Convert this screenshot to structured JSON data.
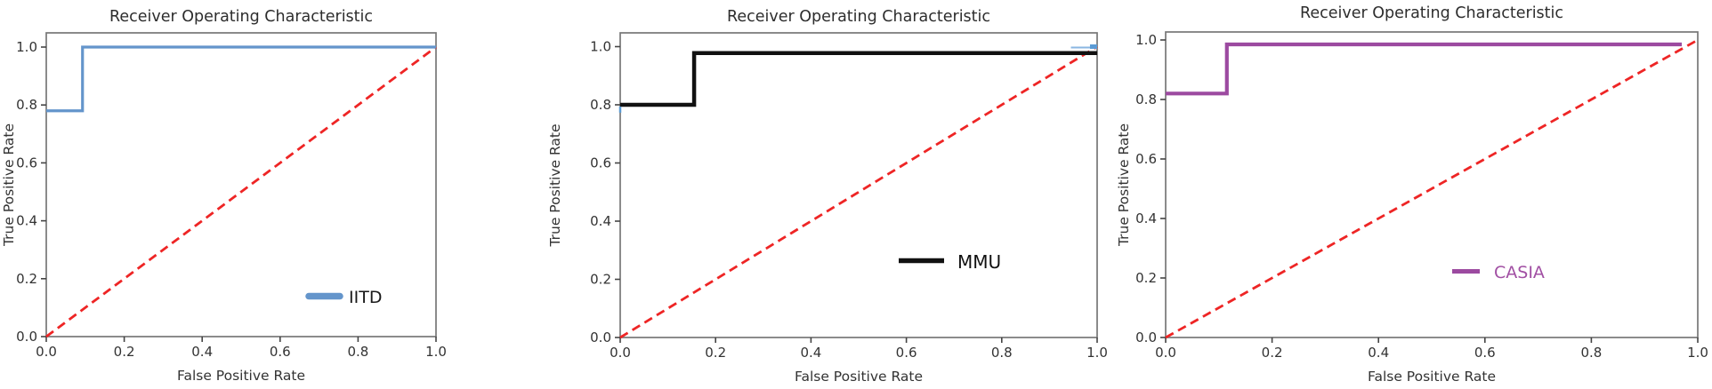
{
  "style": {
    "frame_color": "#777777",
    "tick_color": "#444444",
    "title_color": "#2d2d2d",
    "label_color": "#333333",
    "background": "#ffffff"
  },
  "chart_data": [
    {
      "type": "line",
      "title": "Receiver Operating Characteristic",
      "xlabel": "False Positive Rate",
      "ylabel": "True Positive Rate",
      "xlim": [
        0.0,
        1.0
      ],
      "ylim": [
        0.0,
        1.05
      ],
      "grid": false,
      "xticks": [
        "0.0",
        "0.2",
        "0.4",
        "0.6",
        "0.8",
        "1.0"
      ],
      "yticks": [
        "0.0",
        "0.2",
        "0.4",
        "0.6",
        "0.8",
        "1.0"
      ],
      "legend": {
        "label": "IITD",
        "text_color": "#1a1a1a",
        "swatch_color": "#6495cb",
        "position": "lower-right"
      },
      "series": [
        {
          "name": "chance-diagonal",
          "color": "#ee2525",
          "width": 2.8,
          "dashed": true,
          "points": [
            [
              0.0,
              0.0
            ],
            [
              1.0,
              1.0
            ]
          ]
        },
        {
          "name": "IITD",
          "color": "#6495cb",
          "width": 3.2,
          "dashed": false,
          "points": [
            [
              0.0,
              0.78
            ],
            [
              0.093,
              0.78
            ],
            [
              0.093,
              1.0
            ],
            [
              1.0,
              1.0
            ]
          ]
        }
      ]
    },
    {
      "type": "line",
      "title": "Receiver Operating Characteristic",
      "xlabel": "False Positive Rate",
      "ylabel": "True Positive Rate",
      "xlim": [
        0.0,
        1.0
      ],
      "ylim": [
        0.0,
        1.05
      ],
      "grid": false,
      "xticks": [
        "0.0",
        "0.2",
        "0.4",
        "0.6",
        "0.8",
        "1.0"
      ],
      "yticks": [
        "0.0",
        "0.2",
        "0.4",
        "0.6",
        "0.8",
        "1.0"
      ],
      "legend": {
        "label": "MMU",
        "text_color": "#111111",
        "swatch_color": "#111111",
        "position": "lower-right"
      },
      "series": [
        {
          "name": "chance-diagonal",
          "color": "#ee2525",
          "width": 2.8,
          "dashed": true,
          "points": [
            [
              0.0,
              0.0
            ],
            [
              1.0,
              1.0
            ]
          ]
        },
        {
          "name": "MMU",
          "color": "#111111",
          "width": 4.5,
          "dashed": false,
          "points": [
            [
              0.0,
              0.8
            ],
            [
              0.155,
              0.8
            ],
            [
              0.155,
              0.978
            ],
            [
              1.0,
              0.978
            ]
          ]
        },
        {
          "name": "faint-blue-segment",
          "color": "#8ab6e2",
          "width": 2.0,
          "dashed": false,
          "points": [
            [
              0.945,
              0.997
            ],
            [
              1.0,
              0.997
            ]
          ]
        },
        {
          "name": "blue-corner-mark",
          "color": "#5b9bd5",
          "width": 5.0,
          "dashed": false,
          "points": [
            [
              0.985,
              1.0
            ],
            [
              1.0,
              1.0
            ]
          ]
        },
        {
          "name": "blue-left-tick",
          "color": "#5b9bd5",
          "width": 2.5,
          "dashed": false,
          "points": [
            [
              0.0,
              0.794
            ],
            [
              0.0,
              0.773
            ]
          ]
        }
      ]
    },
    {
      "type": "line",
      "title": "Receiver Operating Characteristic",
      "xlabel": "False Positive Rate",
      "ylabel": "True Positive Rate",
      "xlim": [
        0.0,
        1.0
      ],
      "ylim": [
        0.0,
        1.05
      ],
      "grid": false,
      "xticks": [
        "0.0",
        "0.2",
        "0.4",
        "0.6",
        "0.8",
        "1.0"
      ],
      "yticks": [
        "0.0",
        "0.2",
        "0.4",
        "0.6",
        "0.8",
        "1.0"
      ],
      "legend": {
        "label": "CASIA",
        "text_color": "#a14fa3",
        "swatch_color": "#9c4aa0",
        "position": "lower-right"
      },
      "series": [
        {
          "name": "chance-diagonal",
          "color": "#ee2525",
          "width": 2.8,
          "dashed": true,
          "points": [
            [
              0.0,
              0.0
            ],
            [
              1.0,
              1.0
            ]
          ]
        },
        {
          "name": "CASIA",
          "color": "#9c4aa0",
          "width": 4.2,
          "dashed": false,
          "points": [
            [
              0.0,
              0.82
            ],
            [
              0.115,
              0.82
            ],
            [
              0.115,
              0.985
            ],
            [
              0.97,
              0.985
            ]
          ]
        }
      ]
    }
  ]
}
